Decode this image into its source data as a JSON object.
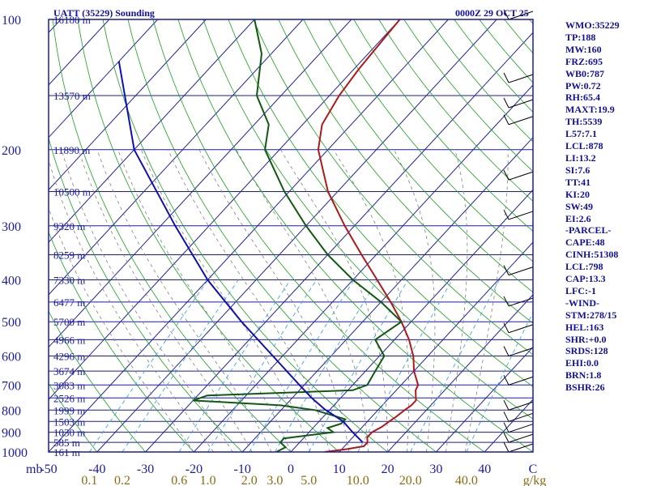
{
  "header": {
    "station": "UATT (35229) Sounding",
    "time": "0000Z 29 OCT 25"
  },
  "colors": {
    "frame": "#1a1aa8",
    "temperature": "#b01818",
    "dewpoint": "#105a10",
    "parcel": "#1010b0",
    "isotherm": "#2020a0",
    "dry_adiabat": "#18a018",
    "moist_adiabat": "#808080",
    "mixing_ratio": "#40a8d8"
  },
  "indices": [
    "WMO:35229",
    "TP:188",
    "MW:160",
    "FRZ:695",
    "WB0:787",
    "PW:0.72",
    "RH:65.4",
    "MAXT:19.9",
    "TH:5539",
    "L57:7.1",
    "LCL:878",
    "LI:13.2",
    "SI:7.6",
    "TT:41",
    "KI:20",
    "SW:49",
    "EI:2.6",
    "-PARCEL-",
    "CAPE:48",
    "CINH:51308",
    "LCL:798",
    "CAP:13.3",
    "LFC:-1",
    "-WIND-",
    "STM:278/15",
    "HEL:163",
    "SHR:+0.0",
    "SRDS:128",
    "EHI:0.0",
    "BRN:1.8",
    "BSHR:26"
  ],
  "chart_data": {
    "type": "line",
    "diagram": "skew-T log-p",
    "pressure_levels": [
      "100",
      "200",
      "300",
      "400",
      "500",
      "600",
      "700",
      "800",
      "900",
      "1000"
    ],
    "pressure_axis_unit": "mb",
    "height_labels": [
      {
        "p": 100,
        "label": "16180 m"
      },
      {
        "p": 150,
        "label": "13570 m"
      },
      {
        "p": 200,
        "label": "11890 m"
      },
      {
        "p": 250,
        "label": "10500 m"
      },
      {
        "p": 300,
        "label": "9320 m"
      },
      {
        "p": 350,
        "label": "8259 m"
      },
      {
        "p": 400,
        "label": "7330 m"
      },
      {
        "p": 450,
        "label": "6477 m"
      },
      {
        "p": 500,
        "label": "5700 m"
      },
      {
        "p": 550,
        "label": "4966 m"
      },
      {
        "p": 600,
        "label": "4296 m"
      },
      {
        "p": 650,
        "label": "3674 m"
      },
      {
        "p": 700,
        "label": "3083 m"
      },
      {
        "p": 750,
        "label": "2526 m"
      },
      {
        "p": 800,
        "label": "1999 m"
      },
      {
        "p": 850,
        "label": "1503 m"
      },
      {
        "p": 900,
        "label": "1030 m"
      },
      {
        "p": 950,
        "label": "585 m"
      },
      {
        "p": 1000,
        "label": "161 m"
      }
    ],
    "temperature_ticks": [
      "-50",
      "-40",
      "-30",
      "-20",
      "-10",
      "0",
      "10",
      "20",
      "30",
      "40",
      "C"
    ],
    "mixing_ratio_labels": [
      "0.1",
      "0.2",
      "0.6",
      "1.0",
      "2.0",
      "3.0",
      "5.0",
      "10.0",
      "20.0",
      "40.0",
      "g/kg"
    ],
    "p_range": [
      100,
      1000
    ],
    "t_range_at_1000mb": [
      -50,
      50
    ],
    "series": [
      {
        "key": "temperature",
        "points": [
          [
            1000,
            7
          ],
          [
            985,
            11
          ],
          [
            970,
            14
          ],
          [
            950,
            14
          ],
          [
            925,
            13
          ],
          [
            900,
            13
          ],
          [
            875,
            14
          ],
          [
            850,
            14.5
          ],
          [
            830,
            15
          ],
          [
            800,
            15.5
          ],
          [
            780,
            16
          ],
          [
            760,
            16
          ],
          [
            720,
            14
          ],
          [
            700,
            13.5
          ],
          [
            650,
            10
          ],
          [
            600,
            7
          ],
          [
            550,
            3
          ],
          [
            500,
            -2
          ],
          [
            450,
            -8
          ],
          [
            400,
            -15
          ],
          [
            350,
            -23
          ],
          [
            300,
            -32
          ],
          [
            250,
            -42
          ],
          [
            200,
            -52
          ],
          [
            175,
            -56
          ],
          [
            150,
            -58
          ],
          [
            130,
            -59
          ],
          [
            100,
            -60
          ]
        ]
      },
      {
        "key": "dewpoint",
        "points": [
          [
            1000,
            -3
          ],
          [
            975,
            -2
          ],
          [
            950,
            -4
          ],
          [
            930,
            -4
          ],
          [
            900,
            5
          ],
          [
            880,
            3
          ],
          [
            860,
            5
          ],
          [
            840,
            5
          ],
          [
            800,
            -3
          ],
          [
            780,
            -11
          ],
          [
            760,
            -30
          ],
          [
            740,
            -28
          ],
          [
            720,
            1
          ],
          [
            700,
            3
          ],
          [
            650,
            2
          ],
          [
            600,
            1
          ],
          [
            550,
            -4
          ],
          [
            500,
            -2
          ],
          [
            450,
            -10
          ],
          [
            400,
            -20
          ],
          [
            350,
            -30
          ],
          [
            300,
            -40
          ],
          [
            250,
            -51
          ],
          [
            200,
            -63
          ],
          [
            175,
            -67
          ],
          [
            150,
            -75
          ],
          [
            120,
            -82
          ],
          [
            100,
            -90
          ]
        ]
      },
      {
        "key": "parcel",
        "points": [
          [
            950,
            13
          ],
          [
            900,
            9
          ],
          [
            850,
            5
          ],
          [
            798,
            -1
          ],
          [
            750,
            -6
          ],
          [
            700,
            -11
          ],
          [
            600,
            -22
          ],
          [
            500,
            -35
          ],
          [
            400,
            -50
          ],
          [
            300,
            -67
          ],
          [
            200,
            -90
          ],
          [
            125,
            -110
          ]
        ]
      }
    ]
  }
}
